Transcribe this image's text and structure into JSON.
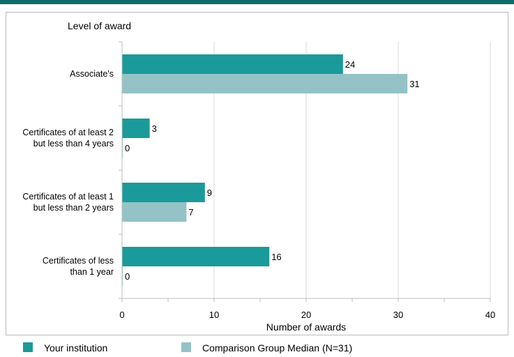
{
  "chart_data": {
    "type": "bar",
    "orientation": "horizontal",
    "ylabel": "Level of award",
    "xlabel": "Number of awards",
    "xlim": [
      0,
      40
    ],
    "xticks": [
      0,
      10,
      20,
      30,
      40
    ],
    "grid": true,
    "legend_position": "bottom",
    "categories": [
      [
        "Associate's"
      ],
      [
        "Certificates of at least 2",
        "but less than 4 years"
      ],
      [
        "Certificates of at least 1",
        "but  less than 2 years"
      ],
      [
        "Certificates of less",
        "than 1 year"
      ]
    ],
    "series": [
      {
        "name": "Your institution",
        "color": "#1a9a9a",
        "values": [
          24,
          3,
          9,
          16
        ]
      },
      {
        "name": "Comparison Group Median (N=31)",
        "color": "#93c3c7",
        "values": [
          31,
          0,
          7,
          0
        ]
      }
    ]
  }
}
